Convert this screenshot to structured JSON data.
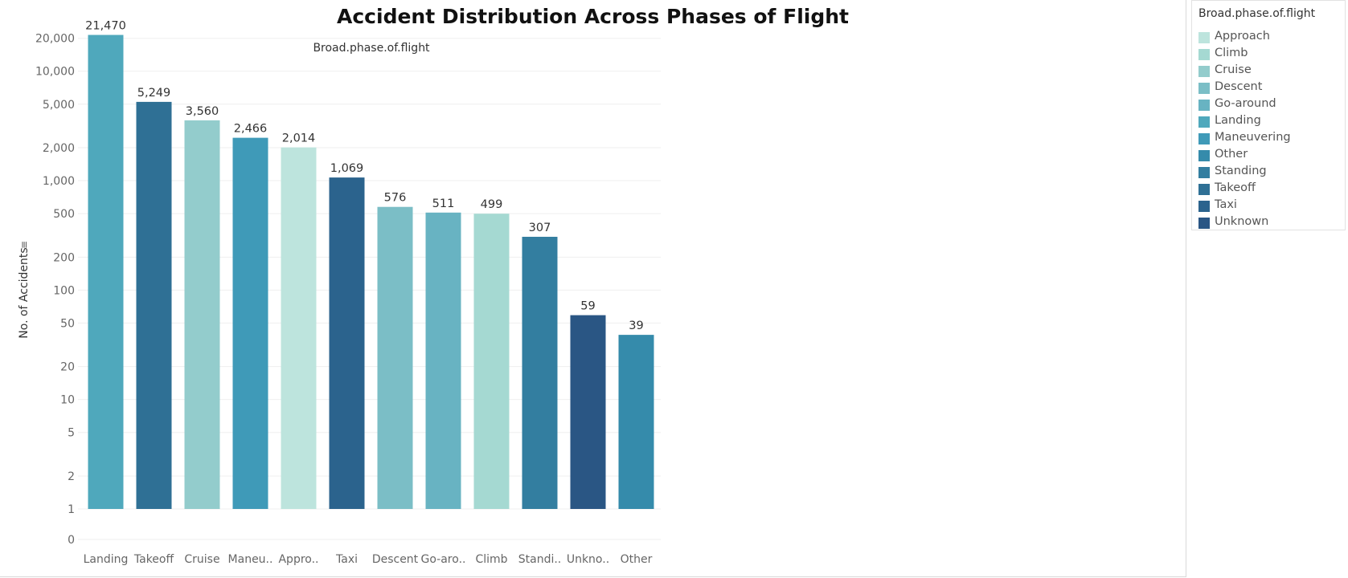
{
  "chart_data": {
    "type": "bar",
    "title": "Accident Distribution Across Phases of Flight",
    "column_header": "Broad.phase.of.flight",
    "ylabel": "No. of Accidents",
    "yscale": "log",
    "ylim": [
      0,
      25000
    ],
    "yticks": [
      0,
      1,
      2,
      5,
      10,
      20,
      50,
      100,
      200,
      500,
      1000,
      2000,
      5000,
      10000,
      20000
    ],
    "ytick_labels": [
      "0",
      "1",
      "2",
      "5",
      "10",
      "20",
      "50",
      "100",
      "200",
      "500",
      "1,000",
      "2,000",
      "5,000",
      "10,000",
      "20,000"
    ],
    "grid": true,
    "categories": [
      "Landing",
      "Takeoff",
      "Cruise",
      "Maneu..",
      "Appro..",
      "Taxi",
      "Descent",
      "Go-aro..",
      "Climb",
      "Standi..",
      "Unkno..",
      "Other"
    ],
    "category_full": [
      "Landing",
      "Takeoff",
      "Cruise",
      "Maneuvering",
      "Approach",
      "Taxi",
      "Descent",
      "Go-around",
      "Climb",
      "Standing",
      "Unknown",
      "Other"
    ],
    "values": [
      21470,
      5249,
      3560,
      2466,
      2014,
      1069,
      576,
      511,
      499,
      307,
      59,
      39
    ],
    "value_labels": [
      "21,470",
      "5,249",
      "3,560",
      "2,466",
      "2,014",
      "1,069",
      "576",
      "511",
      "499",
      "307",
      "59",
      "39"
    ],
    "legend": {
      "title": "Broad.phase.of.flight",
      "placement": "top-right",
      "items": [
        {
          "label": "Approach",
          "color": "#bde4dd"
        },
        {
          "label": "Climb",
          "color": "#a5d9d2"
        },
        {
          "label": "Cruise",
          "color": "#93cccc"
        },
        {
          "label": "Descent",
          "color": "#7bbec6"
        },
        {
          "label": "Go-around",
          "color": "#68b3c2"
        },
        {
          "label": "Landing",
          "color": "#4fa8bc"
        },
        {
          "label": "Maneuvering",
          "color": "#3f9ab8"
        },
        {
          "label": "Other",
          "color": "#358bab"
        },
        {
          "label": "Standing",
          "color": "#337ea0"
        },
        {
          "label": "Takeoff",
          "color": "#2f7095"
        },
        {
          "label": "Taxi",
          "color": "#2b638d"
        },
        {
          "label": "Unknown",
          "color": "#2a5684"
        }
      ]
    }
  }
}
